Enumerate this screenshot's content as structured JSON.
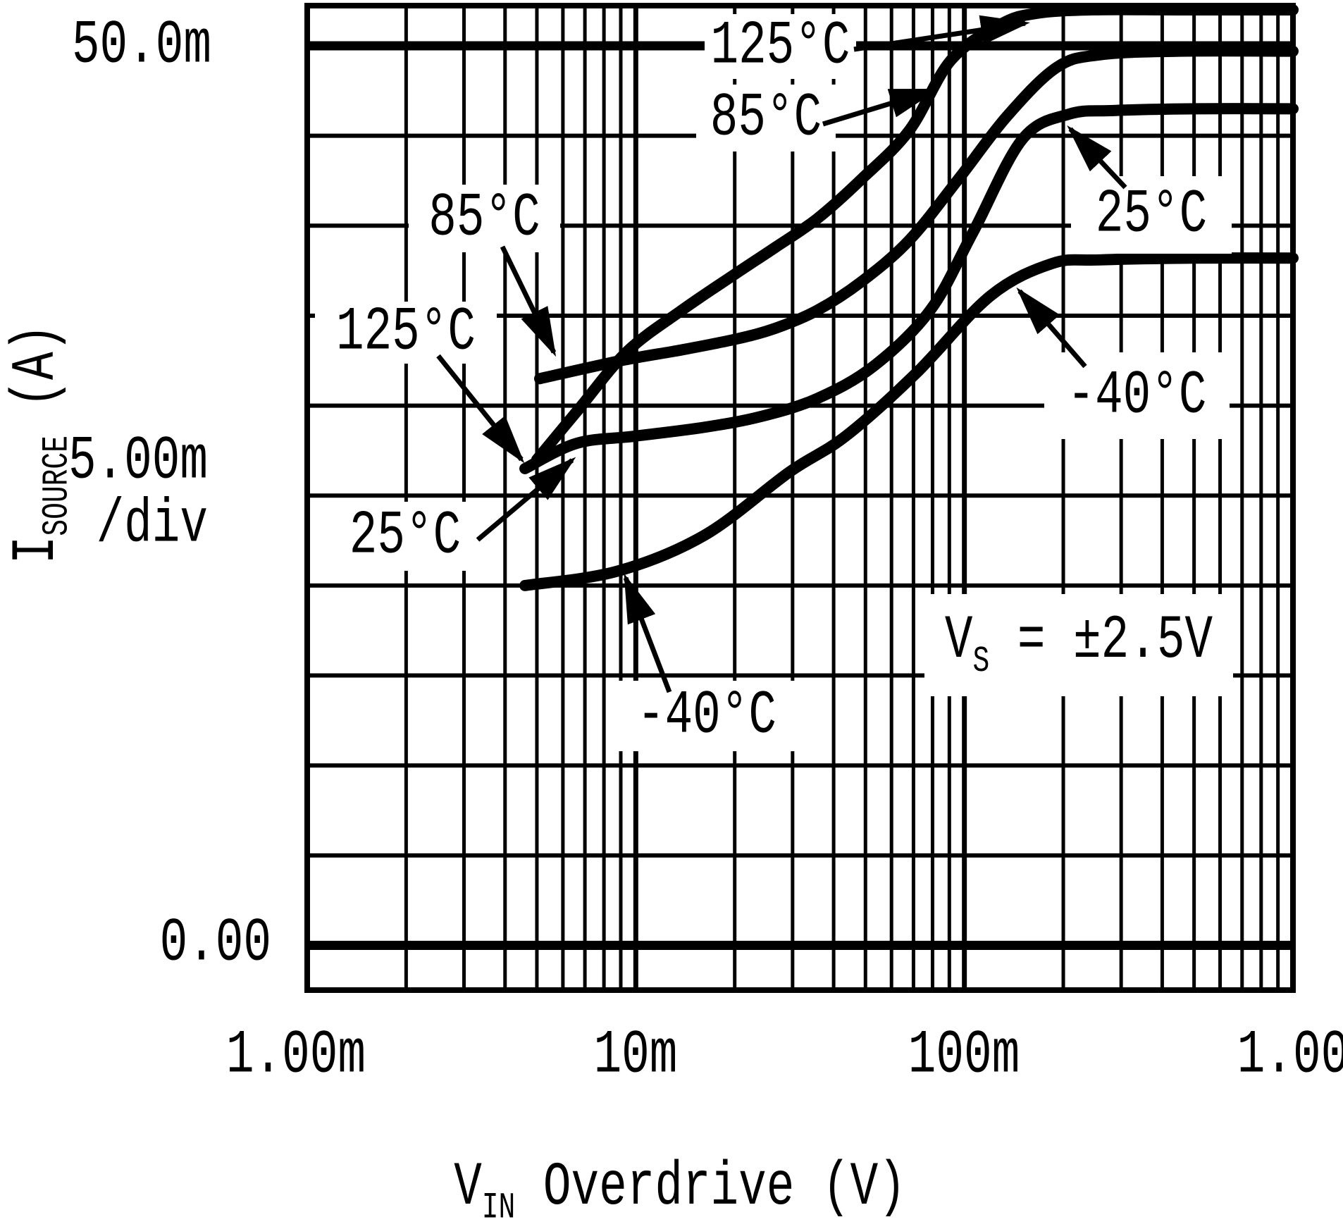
{
  "axes": {
    "x": {
      "title_main": "V",
      "title_sub": "IN",
      "title_rest": " Overdrive (V)",
      "scale": "log",
      "ticks": [
        {
          "label": "1.00m",
          "value": 0.001
        },
        {
          "label": "10m",
          "value": 0.01
        },
        {
          "label": "100m",
          "value": 0.1
        },
        {
          "label": "1.00",
          "value": 1.0
        }
      ]
    },
    "y": {
      "title_main": "I",
      "title_sub": "SOURCE",
      "title_rest": " (A)",
      "scale": "linear",
      "top_tick": "50.0m",
      "div_label": "5.00m",
      "div_suffix": "/div",
      "bottom_tick": "0.00",
      "divisions": 10
    }
  },
  "annotation": {
    "prefix": "V",
    "sub": "S",
    "rest": " = ±2.5V"
  },
  "chart_data": {
    "type": "line",
    "title": "",
    "xlabel": "VIN Overdrive (V)",
    "ylabel": "ISOURCE (A)",
    "x_scale": "log",
    "xlim": [
      0.001,
      1.0
    ],
    "ylim_mA": [
      -2.5,
      52.5
    ],
    "y_gridstep_mA": 5.0,
    "grid": "on",
    "legend_position": "inline-labels",
    "current_unit": "mA",
    "x_unit": "V",
    "series": [
      {
        "name": "125°C",
        "x": [
          0.005,
          0.0067,
          0.0094,
          0.0138,
          0.02,
          0.0266,
          0.0357,
          0.0487,
          0.068,
          0.091,
          0.129,
          0.165,
          0.245,
          0.45,
          1.0
        ],
        "y_mA": [
          27.0,
          29.8,
          33.0,
          35.3,
          37.3,
          38.8,
          40.4,
          42.6,
          45.3,
          49.2,
          51.2,
          51.8,
          52.0,
          52.0,
          52.0
        ]
      },
      {
        "name": "85°C",
        "x": [
          0.0051,
          0.009,
          0.0138,
          0.0202,
          0.0266,
          0.0357,
          0.0487,
          0.068,
          0.096,
          0.135,
          0.191,
          0.258,
          0.45,
          1.0
        ],
        "y_mA": [
          31.5,
          32.5,
          33.1,
          33.7,
          34.3,
          35.3,
          36.9,
          39.2,
          42.6,
          46.1,
          48.8,
          49.5,
          49.7,
          49.7
        ]
      },
      {
        "name": "25°C",
        "x": [
          0.0046,
          0.0066,
          0.0099,
          0.0162,
          0.0241,
          0.0357,
          0.053,
          0.0787,
          0.106,
          0.15,
          0.208,
          0.285,
          0.5,
          1.0
        ],
        "y_mA": [
          26.5,
          27.9,
          28.3,
          28.8,
          29.4,
          30.4,
          32.2,
          35.3,
          39.6,
          44.8,
          46.2,
          46.4,
          46.5,
          46.5
        ]
      },
      {
        "name": "-40°C",
        "x": [
          0.0046,
          0.0088,
          0.0162,
          0.0293,
          0.0435,
          0.0713,
          0.12,
          0.185,
          0.258,
          0.5,
          1.0
        ],
        "y_mA": [
          20.0,
          20.8,
          22.8,
          26.3,
          28.3,
          31.8,
          36.1,
          37.9,
          38.1,
          38.2,
          38.2
        ]
      }
    ]
  }
}
